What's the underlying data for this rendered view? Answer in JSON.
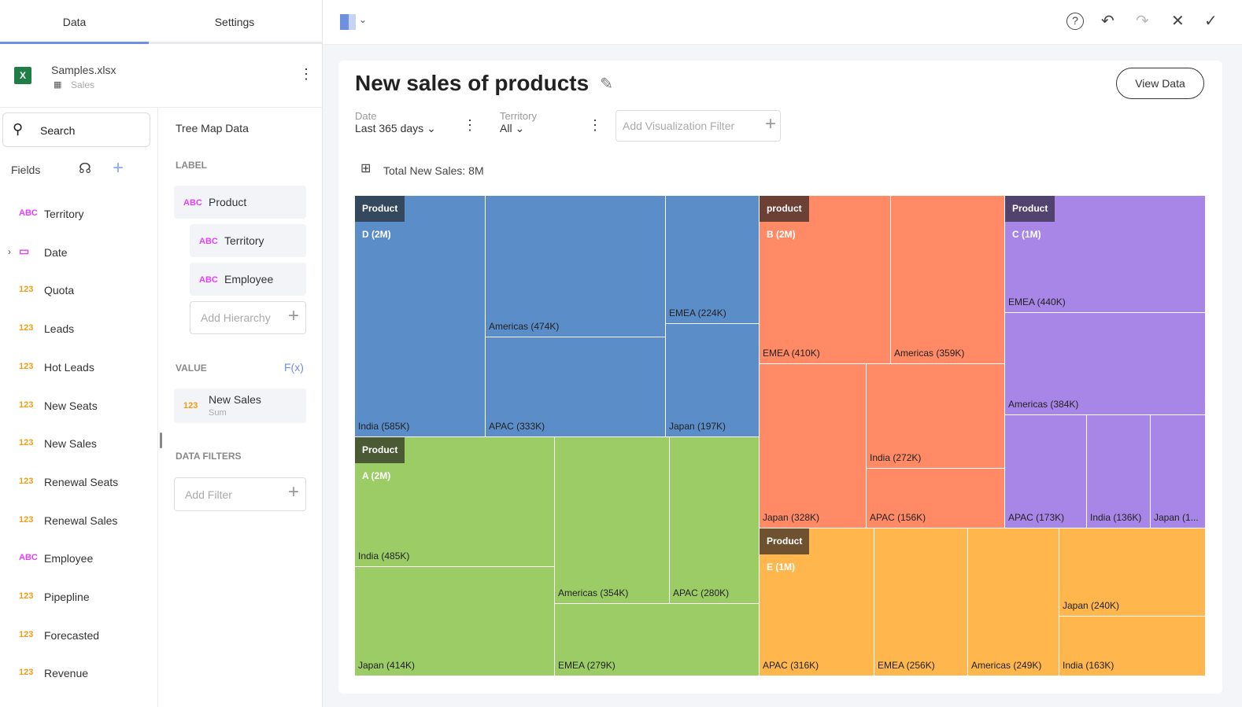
{
  "tabs": [
    "Data",
    "Settings"
  ],
  "source": {
    "file": "Samples.xlsx",
    "sheet": "Sales"
  },
  "search": {
    "placeholder": "Search"
  },
  "fields_title": "Fields",
  "fields": [
    {
      "type": "ABC",
      "name": "Territory"
    },
    {
      "type": "date",
      "name": "Date"
    },
    {
      "type": "123",
      "name": "Quota"
    },
    {
      "type": "123",
      "name": "Leads"
    },
    {
      "type": "123",
      "name": "Hot Leads"
    },
    {
      "type": "123",
      "name": "New Seats"
    },
    {
      "type": "123",
      "name": "New Sales"
    },
    {
      "type": "123",
      "name": "Renewal Seats"
    },
    {
      "type": "123",
      "name": "Renewal Sales"
    },
    {
      "type": "ABC",
      "name": "Employee"
    },
    {
      "type": "123",
      "name": "Pipepline"
    },
    {
      "type": "123",
      "name": "Forecasted"
    },
    {
      "type": "123",
      "name": "Revenue"
    }
  ],
  "config": {
    "title": "Tree Map Data",
    "label_section": "LABEL",
    "labels": [
      {
        "type": "ABC",
        "name": "Product"
      },
      {
        "type": "ABC",
        "name": "Territory"
      },
      {
        "type": "ABC",
        "name": "Employee"
      }
    ],
    "add_hierarchy": "Add Hierarchy",
    "value_section": "VALUE",
    "fx": "F(x)",
    "value": {
      "type": "123",
      "name": "New Sales",
      "agg": "Sum"
    },
    "filters_section": "DATA FILTERS",
    "add_filter": "Add Filter"
  },
  "card": {
    "title": "New sales of products",
    "view_data": "View Data",
    "filters": [
      {
        "label": "Date",
        "value": "Last 365 days"
      },
      {
        "label": "Territory",
        "value": "All"
      }
    ],
    "add_viz_filter": "Add Visualization Filter",
    "total": "Total New Sales: 8M"
  },
  "chart_data": {
    "type": "treemap",
    "groups": [
      {
        "name": "Product D (2M)",
        "color": "#5b8dc9",
        "header": "#34495e",
        "items": [
          "India (585K)",
          "Americas (474K)",
          "APAC (333K)",
          "EMEA (224K)",
          "Japan (197K)"
        ]
      },
      {
        "name": "Product A (2M)",
        "color": "#9ccc65",
        "header": "#4a5a35",
        "items": [
          "India (485K)",
          "Japan (414K)",
          "Americas (354K)",
          "APAC (280K)",
          "EMEA (279K)"
        ]
      },
      {
        "name": "product B (2M)",
        "color": "#ff8a65",
        "header": "#6d4036",
        "items": [
          "EMEA (410K)",
          "Americas (359K)",
          "Japan (328K)",
          "India (272K)",
          "APAC (156K)"
        ]
      },
      {
        "name": "Product C (1M)",
        "color": "#a886e8",
        "header": "#52436e",
        "items": [
          "EMEA (440K)",
          "Americas (384K)",
          "APAC (173K)",
          "India (136K)",
          "Japan (1..."
        ]
      },
      {
        "name": "Product E (1M)",
        "color": "#ffb74d",
        "header": "#6e5230",
        "items": [
          "APAC (316K)",
          "EMEA (256K)",
          "Americas (249K)",
          "Japan (240K)",
          "India (163K)"
        ]
      }
    ]
  }
}
